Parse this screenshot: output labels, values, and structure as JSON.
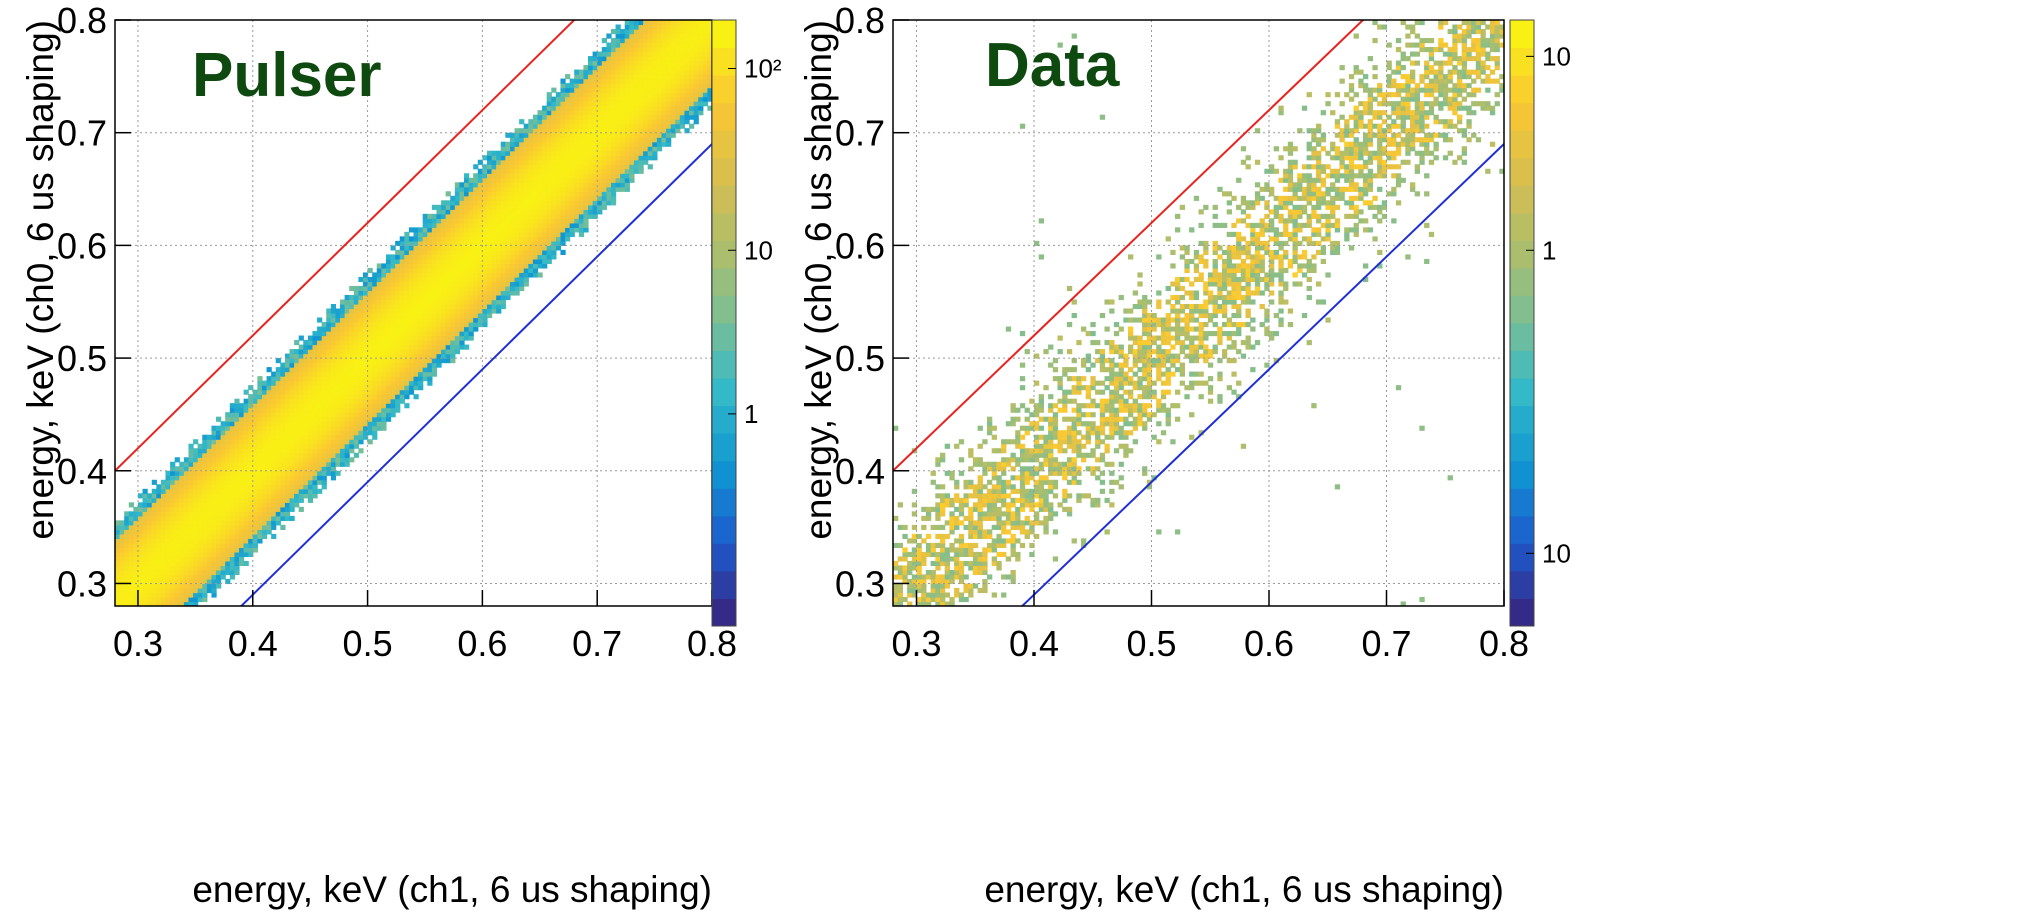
{
  "chart_data": [
    {
      "type": "heatmap",
      "annotation": "Pulser",
      "xlabel": "energy, keV (ch1, 6 us shaping)",
      "ylabel": "energy, keV (ch0, 6 us shaping)",
      "xlim": [
        0.28,
        0.8
      ],
      "ylim": [
        0.28,
        0.8
      ],
      "xticks": [
        "0.3",
        "0.4",
        "0.5",
        "0.6",
        "0.7",
        "0.8"
      ],
      "yticks": [
        "0.3",
        "0.4",
        "0.5",
        "0.6",
        "0.7",
        "0.8"
      ],
      "grid": true,
      "colorbar": {
        "scale": "log",
        "labels": [
          "1",
          "10",
          "10²"
        ]
      },
      "distribution": {
        "center": "y = x",
        "width_sigma": 0.02,
        "max_counts": 200
      },
      "cut_lines": [
        {
          "color": "#e8231e",
          "x": [
            0.28,
            0.7
          ],
          "y": [
            0.4,
            0.82
          ]
        },
        {
          "color": "#1f2fd6",
          "x": [
            0.3,
            0.8
          ],
          "y": [
            0.19,
            0.69
          ]
        }
      ]
    },
    {
      "type": "heatmap",
      "annotation": "Data",
      "xlabel": "energy, keV (ch1, 6 us shaping)",
      "ylabel": "energy, keV (ch0, 6 us shaping)",
      "xlim": [
        0.28,
        0.8
      ],
      "ylim": [
        0.28,
        0.8
      ],
      "xticks": [
        "0.3",
        "0.4",
        "0.5",
        "0.6",
        "0.7",
        "0.8"
      ],
      "yticks": [
        "0.3",
        "0.4",
        "0.5",
        "0.6",
        "0.7",
        "0.8"
      ],
      "grid": true,
      "colorbar": {
        "scale": "log",
        "labels": [
          "10",
          "1",
          "10"
        ]
      },
      "distribution": {
        "center": "y = x",
        "width_sigma": 0.03,
        "max_counts": 15
      },
      "cut_lines": [
        {
          "color": "#e8231e",
          "x": [
            0.28,
            0.7
          ],
          "y": [
            0.4,
            0.82
          ]
        },
        {
          "color": "#1f2fd6",
          "x": [
            0.3,
            0.8
          ],
          "y": [
            0.19,
            0.69
          ]
        }
      ]
    }
  ]
}
